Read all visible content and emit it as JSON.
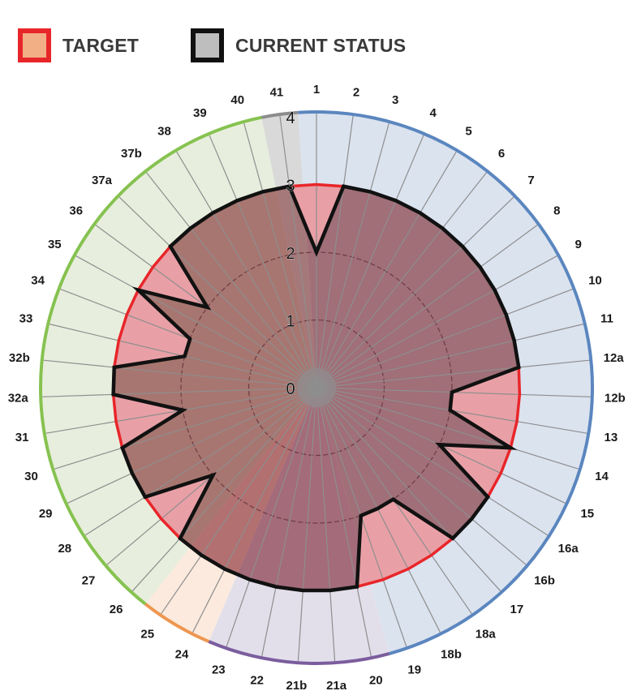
{
  "legend": {
    "items": [
      {
        "label": "TARGET",
        "fill": "#f2ae85",
        "border": "#e8262a"
      },
      {
        "label": "CURRENT STATUS",
        "fill": "#bfbebf",
        "border": "#111111"
      }
    ]
  },
  "chart_data": {
    "type": "radar",
    "title": "",
    "categories": [
      "1",
      "2",
      "3",
      "4",
      "5",
      "6",
      "7",
      "8",
      "9",
      "10",
      "11",
      "12a",
      "12b",
      "13",
      "14",
      "15",
      "16a",
      "16b",
      "17",
      "18a",
      "18b",
      "19",
      "20",
      "21a",
      "21b",
      "22",
      "23",
      "24",
      "25",
      "26",
      "27",
      "28",
      "29",
      "30",
      "31",
      "32a",
      "32b",
      "33",
      "34",
      "35",
      "36",
      "37a",
      "37b",
      "38",
      "39",
      "40",
      "41"
    ],
    "series": [
      {
        "name": "TARGET",
        "color": "#e8262a",
        "values": [
          3,
          3,
          3,
          3,
          3,
          3,
          3,
          3,
          3,
          3,
          3,
          3,
          3,
          3,
          3,
          3,
          3,
          3,
          3,
          3,
          3,
          3,
          3,
          3,
          3,
          3,
          3,
          3,
          3,
          3,
          3,
          3,
          3,
          3,
          3,
          3,
          3,
          3,
          3,
          3,
          3,
          3,
          3,
          3,
          3,
          3,
          3
        ]
      },
      {
        "name": "CURRENT STATUS",
        "color": "#111111",
        "values": [
          2,
          3,
          3,
          3,
          3,
          3,
          3,
          3,
          3,
          3,
          3,
          3,
          2,
          2,
          3,
          2,
          3,
          3,
          3,
          2,
          2,
          2,
          3,
          3,
          3,
          3,
          3,
          3,
          3,
          3,
          2,
          3,
          3,
          3,
          2,
          3,
          3,
          2,
          2,
          3,
          2,
          3,
          3,
          3,
          3,
          3,
          3
        ]
      }
    ],
    "radial_ticks": [
      "0",
      "1",
      "2",
      "3",
      "4"
    ],
    "rlim": [
      0,
      4
    ],
    "groups": [
      {
        "name": "group-blue",
        "from": 0,
        "to": 21,
        "band": "#5b86bf",
        "bg": "#dbe3ef",
        "inner": "#a06f78"
      },
      {
        "name": "group-purple",
        "from": 22,
        "to": 26,
        "band": "#7b5d9d",
        "bg": "#e2dfeb",
        "inner": "#a46b7a"
      },
      {
        "name": "group-orange",
        "from": 27,
        "to": 28,
        "band": "#ee9650",
        "bg": "#fbeadd",
        "inner": "#b27070"
      },
      {
        "name": "group-green",
        "from": 29,
        "to": 45,
        "band": "#86c250",
        "bg": "#e8eedd",
        "inner": "#a87670"
      },
      {
        "name": "group-gray",
        "from": 46,
        "to": 46,
        "band": "#8c8c8c",
        "bg": "#d9d9d9",
        "inner": "#a5787a"
      }
    ],
    "grid": true,
    "legend_position": "top-left"
  }
}
